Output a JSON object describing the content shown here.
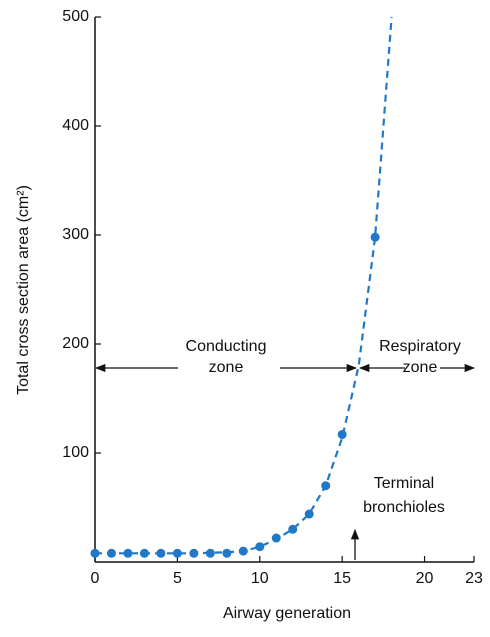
{
  "chart_data": {
    "type": "scatter",
    "x_label": "Airway generation",
    "y_label": "Total cross section area (cm²)",
    "xlim": [
      0,
      23
    ],
    "ylim": [
      0,
      500
    ],
    "xticks": [
      0,
      5,
      10,
      15,
      20,
      23
    ],
    "yticks": [
      100,
      200,
      300,
      400,
      500
    ],
    "color": "#1f78c8",
    "points": {
      "x": [
        0,
        1,
        2,
        3,
        4,
        5,
        6,
        7,
        8,
        9,
        10,
        11,
        12,
        13,
        14,
        15,
        17
      ],
      "values": [
        8,
        8,
        8,
        8,
        8,
        8,
        8,
        8,
        8,
        10,
        14,
        22,
        30,
        44,
        70,
        117,
        298
      ]
    },
    "curve": {
      "x": [
        0,
        2,
        4,
        6,
        8,
        9,
        10,
        11,
        12,
        13,
        14,
        15,
        16,
        17,
        18
      ],
      "values": [
        8,
        8,
        8,
        8,
        9,
        10,
        14,
        21,
        30,
        44,
        70,
        114,
        180,
        298,
        500
      ]
    },
    "annotations": [
      {
        "lines": [
          "Conducting",
          "zone"
        ]
      },
      {
        "lines": [
          "Respiratory",
          "zone"
        ]
      },
      {
        "lines": [
          "Terminal",
          "bronchioles"
        ]
      }
    ]
  }
}
